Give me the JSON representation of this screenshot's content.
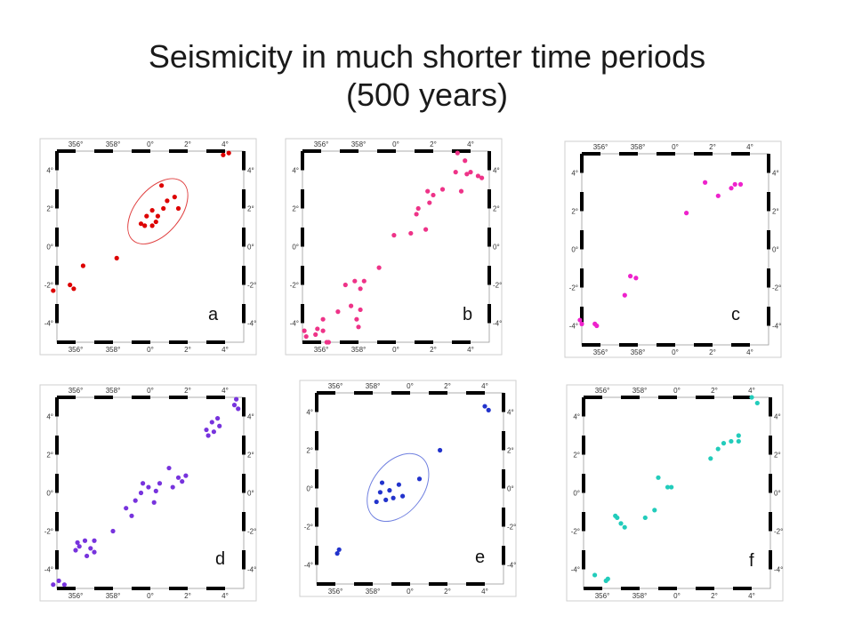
{
  "title_line1": "Seismicity in much shorter time periods",
  "title_line2": "(500 years)",
  "chart_data": [
    {
      "type": "scatter",
      "label": "a",
      "color": "#dd0000",
      "xticks": [
        "356°",
        "358°",
        "0°",
        "2°",
        "4°"
      ],
      "yticks": [
        "4°",
        "2°",
        "0°",
        "-2°",
        "-4°"
      ],
      "xlim": [
        355,
        5
      ],
      "ylim": [
        -5,
        5
      ],
      "points": [
        [
          354.8,
          -2.3
        ],
        [
          355.7,
          -2.0
        ],
        [
          355.9,
          -2.2
        ],
        [
          356.4,
          -1.0
        ],
        [
          358.2,
          -0.6
        ],
        [
          359.5,
          1.2
        ],
        [
          359.7,
          1.1
        ],
        [
          359.8,
          1.6
        ],
        [
          0.1,
          1.1
        ],
        [
          0.1,
          1.9
        ],
        [
          0.3,
          1.3
        ],
        [
          0.4,
          1.6
        ],
        [
          0.6,
          3.2
        ],
        [
          0.7,
          2.0
        ],
        [
          0.9,
          2.4
        ],
        [
          1.3,
          2.6
        ],
        [
          1.5,
          2.0
        ],
        [
          3.9,
          4.8
        ],
        [
          4.2,
          4.9
        ]
      ],
      "ellipse": {
        "cx": 0.4,
        "cy": 1.85,
        "rx": 1.2,
        "ry": 2.0,
        "angle_deg": 40
      }
    },
    {
      "type": "scatter",
      "label": "b",
      "color": "#ee3388",
      "xticks": [
        "356°",
        "358°",
        "0°",
        "2°",
        "4°"
      ],
      "yticks": [
        "4°",
        "2°",
        "0°",
        "-2°",
        "-4°"
      ],
      "xlim": [
        355,
        5
      ],
      "ylim": [
        -5,
        5
      ],
      "points": [
        [
          355.1,
          -4.4
        ],
        [
          355.2,
          -4.7
        ],
        [
          355.7,
          -4.6
        ],
        [
          355.8,
          -4.3
        ],
        [
          356.1,
          -3.8
        ],
        [
          356.1,
          -4.4
        ],
        [
          356.3,
          -5.0
        ],
        [
          356.4,
          -5.0
        ],
        [
          356.9,
          -3.4
        ],
        [
          357.6,
          -3.1
        ],
        [
          357.9,
          -3.8
        ],
        [
          358.0,
          -4.2
        ],
        [
          358.1,
          -3.3
        ],
        [
          357.3,
          -2.0
        ],
        [
          357.8,
          -1.8
        ],
        [
          358.1,
          -2.2
        ],
        [
          358.3,
          -1.8
        ],
        [
          359.1,
          -1.1
        ],
        [
          359.9,
          0.6
        ],
        [
          0.8,
          0.7
        ],
        [
          1.1,
          1.7
        ],
        [
          1.2,
          2.0
        ],
        [
          1.6,
          0.9
        ],
        [
          1.7,
          2.9
        ],
        [
          1.8,
          2.3
        ],
        [
          2.0,
          2.7
        ],
        [
          2.5,
          3.0
        ],
        [
          3.2,
          3.9
        ],
        [
          3.3,
          4.9
        ],
        [
          3.5,
          2.9
        ],
        [
          3.7,
          4.5
        ],
        [
          3.8,
          3.8
        ],
        [
          4.0,
          3.9
        ],
        [
          4.4,
          3.7
        ],
        [
          4.6,
          3.6
        ]
      ]
    },
    {
      "type": "scatter",
      "label": "c",
      "color": "#ee22cc",
      "xticks": [
        "356°",
        "358°",
        "0°",
        "2°",
        "4°"
      ],
      "yticks": [
        "4°",
        "2°",
        "0°",
        "-2°",
        "-4°"
      ],
      "xlim": [
        355,
        5
      ],
      "ylim": [
        -5,
        5
      ],
      "points": [
        [
          354.9,
          -3.7
        ],
        [
          355.0,
          -3.9
        ],
        [
          355.7,
          -3.9
        ],
        [
          355.8,
          -4.0
        ],
        [
          357.3,
          -2.4
        ],
        [
          357.6,
          -1.4
        ],
        [
          357.9,
          -1.5
        ],
        [
          0.6,
          1.9
        ],
        [
          1.6,
          3.5
        ],
        [
          2.3,
          2.8
        ],
        [
          3.0,
          3.2
        ],
        [
          3.2,
          3.4
        ],
        [
          3.5,
          3.4
        ]
      ]
    },
    {
      "type": "scatter",
      "label": "d",
      "color": "#7733dd",
      "xticks": [
        "356°",
        "358°",
        "0°",
        "2°",
        "4°"
      ],
      "yticks": [
        "4°",
        "2°",
        "0°",
        "-2°",
        "-4°"
      ],
      "xlim": [
        355,
        5
      ],
      "ylim": [
        -5,
        5
      ],
      "points": [
        [
          354.8,
          -4.8
        ],
        [
          355.1,
          -4.6
        ],
        [
          355.4,
          -4.8
        ],
        [
          356.0,
          -3.0
        ],
        [
          356.1,
          -2.6
        ],
        [
          356.2,
          -2.8
        ],
        [
          356.5,
          -2.5
        ],
        [
          356.6,
          -3.3
        ],
        [
          356.8,
          -2.9
        ],
        [
          357.0,
          -3.1
        ],
        [
          357.0,
          -2.5
        ],
        [
          358.0,
          -2.0
        ],
        [
          358.7,
          -0.8
        ],
        [
          359.0,
          -1.2
        ],
        [
          359.2,
          -0.4
        ],
        [
          359.5,
          0.0
        ],
        [
          359.6,
          0.5
        ],
        [
          359.9,
          0.3
        ],
        [
          0.2,
          -0.5
        ],
        [
          0.3,
          0.1
        ],
        [
          0.5,
          0.5
        ],
        [
          1.0,
          1.3
        ],
        [
          1.2,
          0.3
        ],
        [
          1.5,
          0.8
        ],
        [
          1.7,
          0.6
        ],
        [
          1.9,
          0.9
        ],
        [
          3.0,
          3.3
        ],
        [
          3.1,
          3.0
        ],
        [
          3.3,
          3.7
        ],
        [
          3.4,
          3.2
        ],
        [
          3.6,
          3.9
        ],
        [
          3.7,
          3.5
        ],
        [
          4.5,
          4.6
        ],
        [
          4.6,
          4.9
        ],
        [
          4.7,
          4.4
        ]
      ]
    },
    {
      "type": "scatter",
      "label": "e",
      "color": "#2233cc",
      "xticks": [
        "356°",
        "358°",
        "0°",
        "2°",
        "4°"
      ],
      "yticks": [
        "4°",
        "2°",
        "0°",
        "-2°",
        "-4°"
      ],
      "xlim": [
        355,
        5
      ],
      "ylim": [
        -5,
        5
      ],
      "points": [
        [
          356.1,
          -3.4
        ],
        [
          356.2,
          -3.2
        ],
        [
          358.2,
          -0.7
        ],
        [
          358.4,
          -0.2
        ],
        [
          358.5,
          0.3
        ],
        [
          358.7,
          -0.6
        ],
        [
          358.9,
          -0.1
        ],
        [
          359.1,
          -0.5
        ],
        [
          359.4,
          0.2
        ],
        [
          359.6,
          -0.4
        ],
        [
          0.5,
          0.5
        ],
        [
          1.6,
          2.0
        ],
        [
          4.0,
          4.3
        ],
        [
          4.2,
          4.1
        ]
      ],
      "ellipse": {
        "cx": 359.35,
        "cy": 0.05,
        "rx": 1.35,
        "ry": 2.0,
        "angle_deg": 38
      }
    },
    {
      "type": "scatter",
      "label": "f",
      "color": "#22ccbb",
      "xticks": [
        "356°",
        "358°",
        "0°",
        "2°",
        "4°"
      ],
      "yticks": [
        "4°",
        "2°",
        "0°",
        "-2°",
        "-4°"
      ],
      "xlim": [
        355,
        5
      ],
      "ylim": [
        -5,
        5
      ],
      "points": [
        [
          355.6,
          -4.3
        ],
        [
          356.2,
          -4.6
        ],
        [
          356.3,
          -4.5
        ],
        [
          356.7,
          -1.2
        ],
        [
          356.8,
          -1.3
        ],
        [
          357.0,
          -1.6
        ],
        [
          357.2,
          -1.8
        ],
        [
          358.3,
          -1.3
        ],
        [
          358.8,
          -0.9
        ],
        [
          359.0,
          0.8
        ],
        [
          359.5,
          0.3
        ],
        [
          359.7,
          0.3
        ],
        [
          1.8,
          1.8
        ],
        [
          2.2,
          2.3
        ],
        [
          2.5,
          2.6
        ],
        [
          2.9,
          2.7
        ],
        [
          3.3,
          2.7
        ],
        [
          3.3,
          3.0
        ],
        [
          4.0,
          5.0
        ],
        [
          4.3,
          4.7
        ]
      ]
    }
  ]
}
